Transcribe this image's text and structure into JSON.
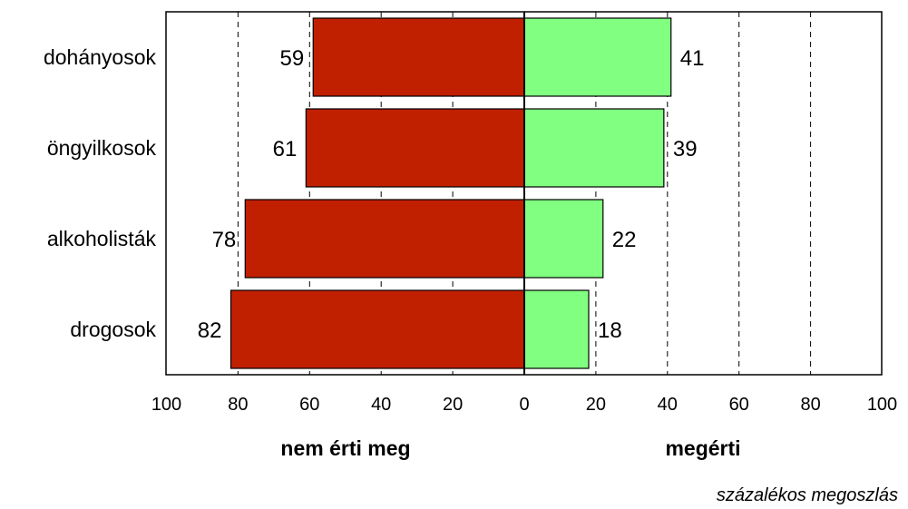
{
  "chart_data": {
    "type": "bar",
    "orientation": "horizontal",
    "layout": "diverging",
    "categories": [
      "dohányosok",
      "öngyilkosok",
      "alkoholisták",
      "drogosok"
    ],
    "series": [
      {
        "name": "nem érti meg",
        "values": [
          59,
          61,
          78,
          82
        ],
        "color": "#c02000",
        "direction": "left"
      },
      {
        "name": "megérti",
        "values": [
          41,
          39,
          22,
          18
        ],
        "color": "#80ff80",
        "direction": "right"
      }
    ],
    "xlim": [
      -100,
      100
    ],
    "x_ticks": [
      -100,
      -80,
      -60,
      -40,
      -20,
      0,
      20,
      40,
      60,
      80,
      100
    ],
    "x_tick_labels": [
      "100",
      "80",
      "60",
      "40",
      "20",
      "0",
      "20",
      "40",
      "60",
      "80",
      "100"
    ],
    "left_axis_label": "nem érti meg",
    "right_axis_label": "megérti",
    "note": "százalékos megoszlás",
    "grid": "vertical dashed"
  }
}
